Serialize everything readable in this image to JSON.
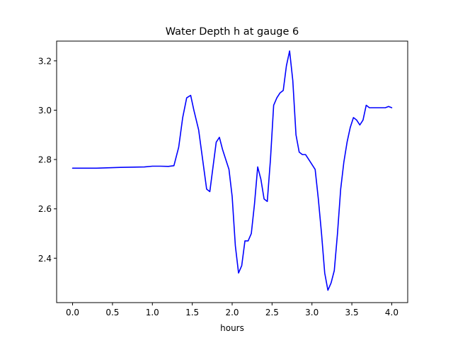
{
  "chart_data": {
    "type": "line",
    "title": "Water Depth h at gauge 6",
    "xlabel": "hours",
    "ylabel": "",
    "xlim": [
      -0.2,
      4.2
    ],
    "ylim": [
      2.22,
      3.28
    ],
    "xticks": [
      0.0,
      0.5,
      1.0,
      1.5,
      2.0,
      2.5,
      3.0,
      3.5,
      4.0
    ],
    "xtick_labels": [
      "0.0",
      "0.5",
      "1.0",
      "1.5",
      "2.0",
      "2.5",
      "3.0",
      "3.5",
      "4.0"
    ],
    "yticks": [
      2.4,
      2.6,
      2.8,
      3.0,
      3.2
    ],
    "ytick_labels": [
      "2.4",
      "2.6",
      "2.8",
      "3.0",
      "3.2"
    ],
    "grid": false,
    "legend": "none",
    "series": [
      {
        "color": "#0000ff",
        "x": [
          0.0,
          0.3,
          0.6,
          0.9,
          1.0,
          1.1,
          1.2,
          1.27,
          1.33,
          1.38,
          1.43,
          1.48,
          1.52,
          1.58,
          1.63,
          1.68,
          1.72,
          1.76,
          1.8,
          1.84,
          1.88,
          1.92,
          1.96,
          2.0,
          2.04,
          2.08,
          2.12,
          2.16,
          2.2,
          2.24,
          2.28,
          2.32,
          2.36,
          2.4,
          2.44,
          2.48,
          2.52,
          2.56,
          2.6,
          2.64,
          2.68,
          2.72,
          2.76,
          2.8,
          2.84,
          2.88,
          2.92,
          2.96,
          3.0,
          3.04,
          3.08,
          3.12,
          3.16,
          3.2,
          3.24,
          3.28,
          3.32,
          3.36,
          3.4,
          3.44,
          3.48,
          3.52,
          3.56,
          3.6,
          3.64,
          3.68,
          3.72,
          3.76,
          3.8,
          3.84,
          3.88,
          3.92,
          3.96,
          4.0
        ],
        "y": [
          2.765,
          2.765,
          2.768,
          2.77,
          2.773,
          2.773,
          2.772,
          2.775,
          2.85,
          2.97,
          3.05,
          3.06,
          3.0,
          2.92,
          2.8,
          2.68,
          2.67,
          2.77,
          2.87,
          2.89,
          2.84,
          2.8,
          2.76,
          2.65,
          2.45,
          2.34,
          2.37,
          2.47,
          2.47,
          2.5,
          2.62,
          2.77,
          2.72,
          2.64,
          2.63,
          2.8,
          3.02,
          3.05,
          3.07,
          3.08,
          3.18,
          3.24,
          3.12,
          2.9,
          2.83,
          2.82,
          2.82,
          2.8,
          2.78,
          2.76,
          2.64,
          2.5,
          2.34,
          2.27,
          2.3,
          2.35,
          2.5,
          2.68,
          2.79,
          2.87,
          2.93,
          2.97,
          2.96,
          2.94,
          2.96,
          3.02,
          3.01,
          3.01,
          3.01,
          3.01,
          3.01,
          3.01,
          3.015,
          3.01
        ]
      }
    ]
  }
}
